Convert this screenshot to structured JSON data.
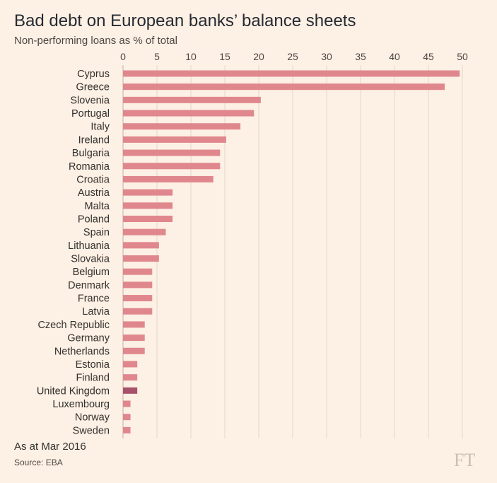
{
  "header": {
    "title": "Bad debt on European banks’ balance sheets",
    "subtitle": "Non-performing loans as % of total"
  },
  "footer": {
    "note": "As at Mar 2016",
    "source": "Source: EBA",
    "logo": "FT"
  },
  "colors": {
    "background": "#fdf0e4",
    "bar": "#e0878e",
    "highlight": "#a8516a",
    "axis_text": "#4d4845",
    "gridline": "#e3d7cb"
  },
  "chart_data": {
    "type": "bar",
    "orientation": "horizontal",
    "title": "Bad debt on European banks’ balance sheets",
    "subtitle": "Non-performing loans as % of total",
    "xlabel": "",
    "ylabel": "",
    "xlim": [
      0,
      50
    ],
    "xticks": [
      0,
      5,
      10,
      15,
      20,
      25,
      30,
      35,
      40,
      45,
      50
    ],
    "x_axis_position": "top",
    "grid": true,
    "categories": [
      "Cyprus",
      "Greece",
      "Slovenia",
      "Portugal",
      "Italy",
      "Ireland",
      "Bulgaria",
      "Romania",
      "Croatia",
      "Austria",
      "Malta",
      "Poland",
      "Spain",
      "Lithuania",
      "Slovakia",
      "Belgium",
      "Denmark",
      "France",
      "Latvia",
      "Czech Republic",
      "Germany",
      "Netherlands",
      "Estonia",
      "Finland",
      "United Kingdom",
      "Luxembourg",
      "Norway",
      "Sweden"
    ],
    "values": [
      49.6,
      47.4,
      20.3,
      19.3,
      17.3,
      15.2,
      14.3,
      14.3,
      13.3,
      7.3,
      7.3,
      7.3,
      6.3,
      5.3,
      5.3,
      4.3,
      4.3,
      4.3,
      4.3,
      3.2,
      3.2,
      3.2,
      2.1,
      2.1,
      2.1,
      1.1,
      1.1,
      1.1
    ],
    "highlight": "United Kingdom"
  }
}
